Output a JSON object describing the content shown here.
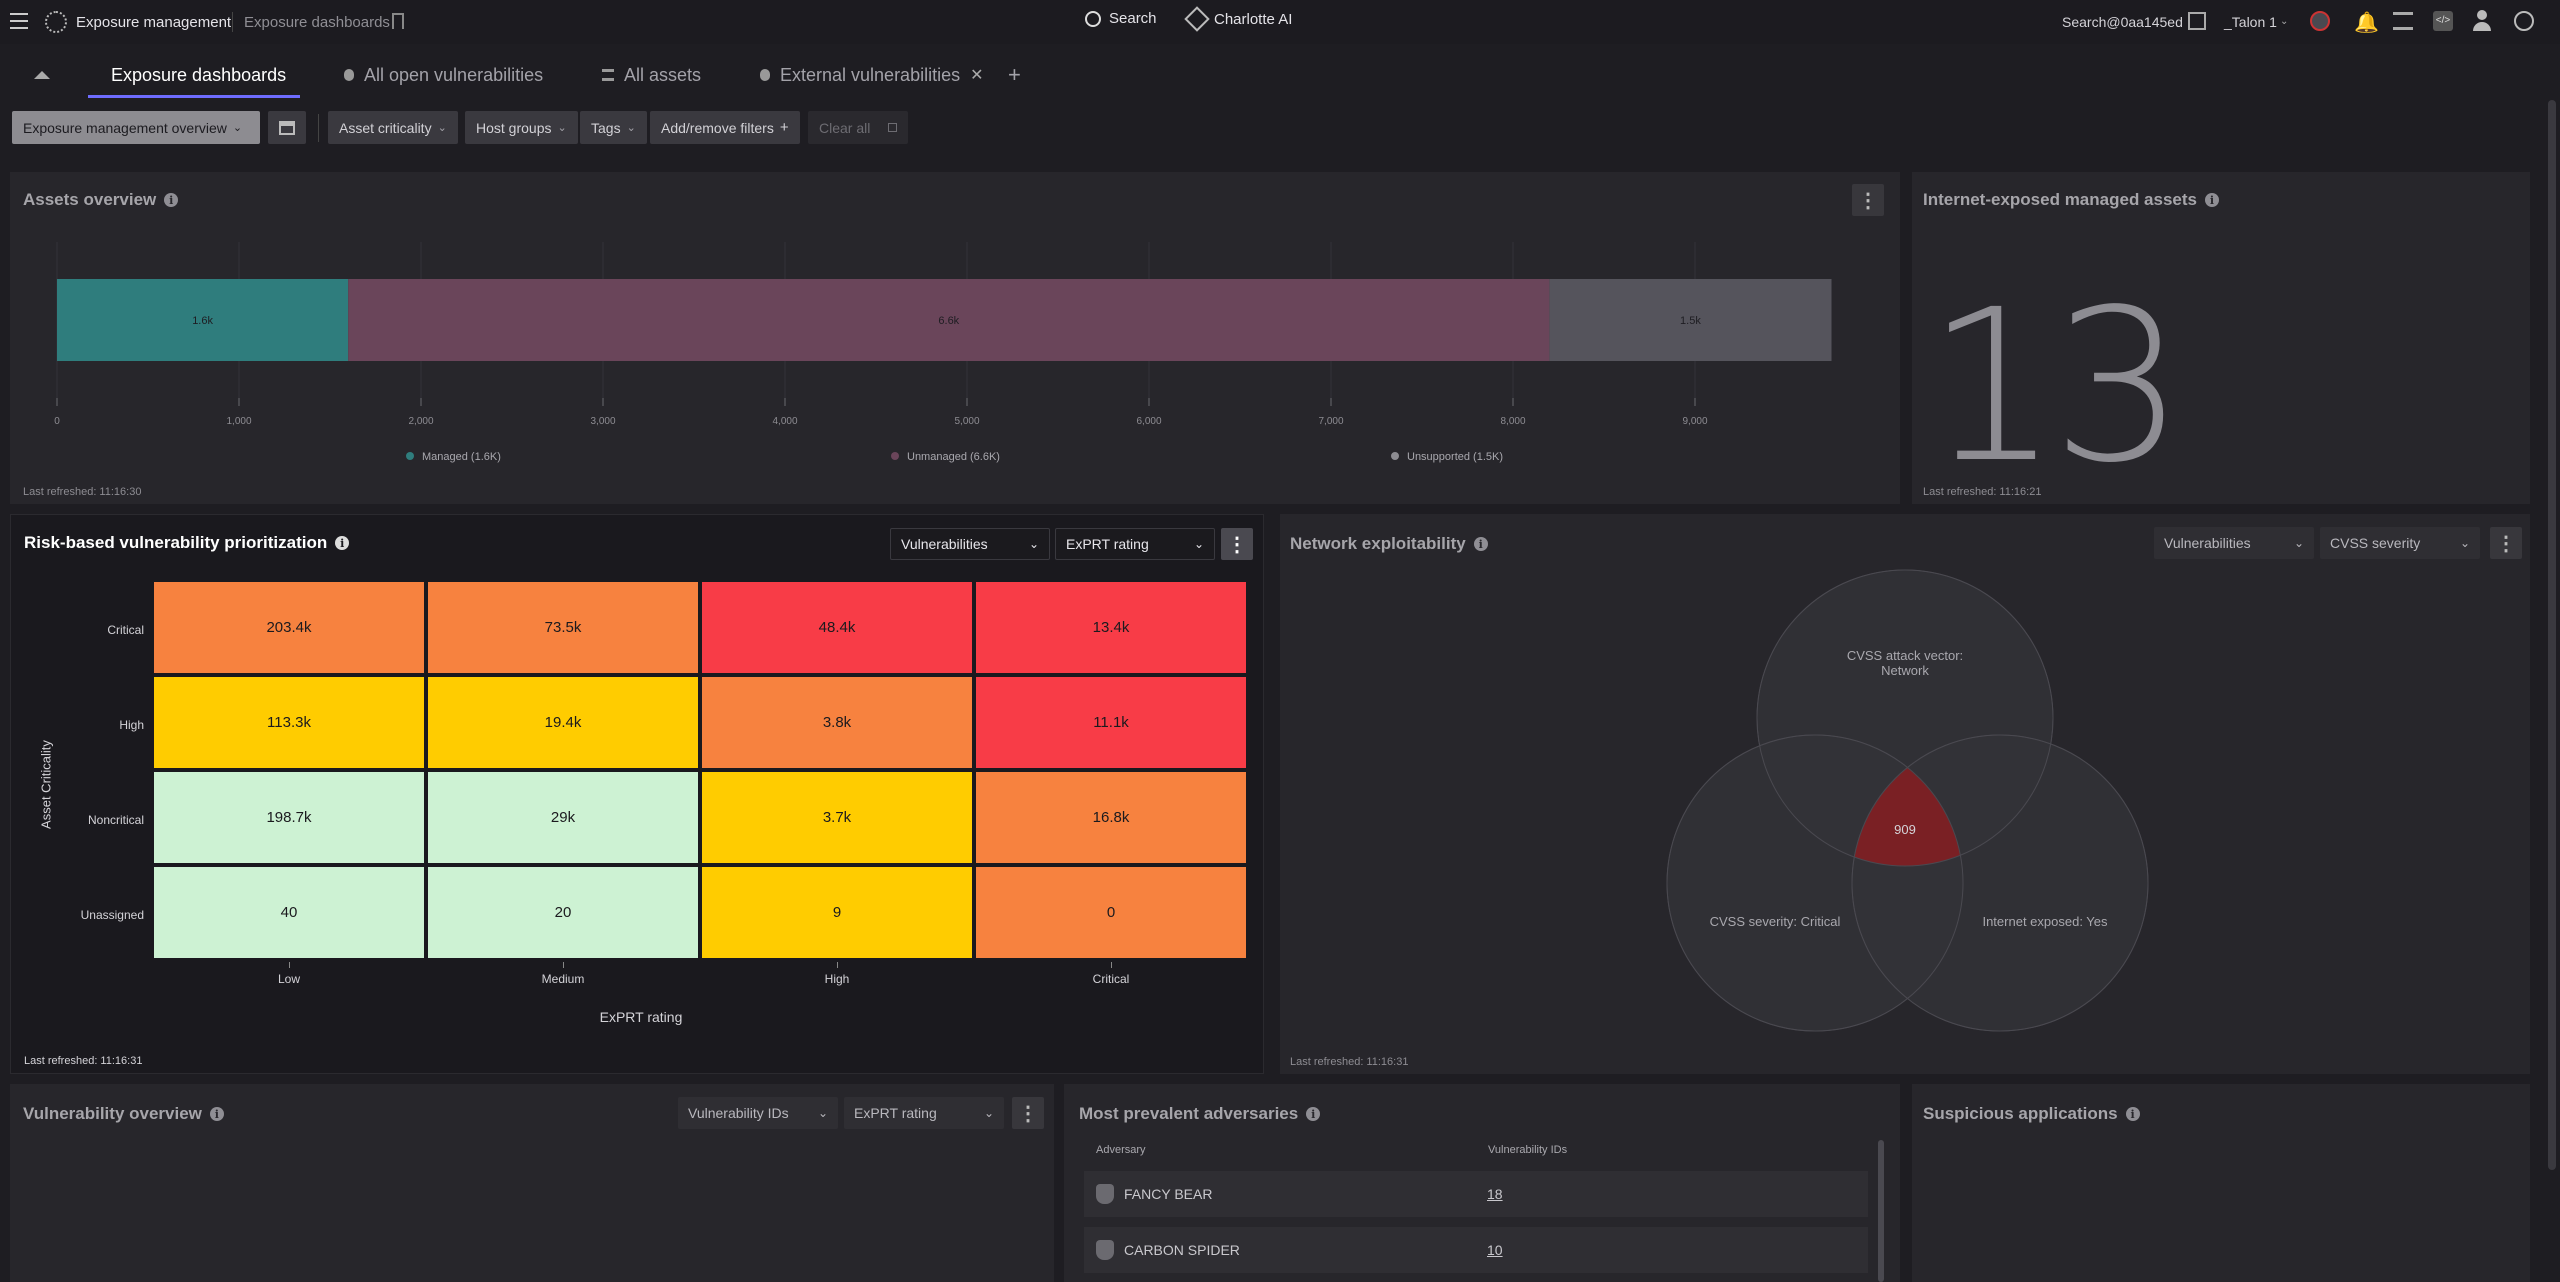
{
  "topbar": {
    "app_title": "Exposure management",
    "breadcrumb": "Exposure dashboards",
    "search_label": "Search",
    "ai_label": "Charlotte AI",
    "user_email": "Search@0aa145ed",
    "tenant": "_Talon 1"
  },
  "tabs": [
    {
      "label": "Exposure dashboards"
    },
    {
      "label": "All open vulnerabilities"
    },
    {
      "label": "All assets"
    },
    {
      "label": "External vulnerabilities"
    }
  ],
  "filters": {
    "dashboard_select": "Exposure management overview",
    "asset_criticality": "Asset criticality",
    "host_groups": "Host groups",
    "tags": "Tags",
    "add_remove": "Add/remove filters",
    "clear_all": "Clear all"
  },
  "assets_overview": {
    "title": "Assets overview",
    "refreshed": "Last refreshed: 11:16:30",
    "chart_data": {
      "type": "bar",
      "orientation": "horizontal-stacked",
      "series": [
        {
          "name": "Managed (1.6K)",
          "value": 1600,
          "label": "1.6k",
          "color": "#2f7d7d"
        },
        {
          "name": "Unmanaged (6.6K)",
          "value": 6600,
          "label": "6.6k",
          "color": "#6a455a"
        },
        {
          "name": "Unsupported (1.5K)",
          "value": 1550,
          "label": "1.5k",
          "color": "#55545c"
        }
      ],
      "xticks": [
        "0",
        "1,000",
        "2,000",
        "3,000",
        "4,000",
        "5,000",
        "6,000",
        "7,000",
        "8,000",
        "9,000"
      ],
      "xlim": [
        0,
        10000
      ]
    }
  },
  "internet_exposed": {
    "title": "Internet-exposed managed assets",
    "value": "13",
    "refreshed": "Last refreshed: 11:16:21"
  },
  "risk_matrix": {
    "title": "Risk-based vulnerability prioritization",
    "dd1": "Vulnerabilities",
    "dd2": "ExPRT rating",
    "refreshed": "Last refreshed: 11:16:31",
    "chart_data": {
      "type": "heatmap",
      "xlabel": "ExPRT rating",
      "ylabel": "Asset Criticality",
      "x": [
        "Low",
        "Medium",
        "High",
        "Critical"
      ],
      "y": [
        "Critical",
        "High",
        "Noncritical",
        "Unassigned"
      ],
      "labels": [
        [
          "203.4k",
          "73.5k",
          "48.4k",
          "13.4k"
        ],
        [
          "113.3k",
          "19.4k",
          "3.8k",
          "11.1k"
        ],
        [
          "198.7k",
          "29k",
          "3.7k",
          "16.8k"
        ],
        [
          "40",
          "20",
          "9",
          "0"
        ]
      ],
      "colors": [
        [
          "#f7823f",
          "#f7823f",
          "#f83c47",
          "#f83c47"
        ],
        [
          "#ffcc00",
          "#ffcc00",
          "#f7823f",
          "#f83c47"
        ],
        [
          "#cdf2d3",
          "#cdf2d3",
          "#ffcc00",
          "#f7823f"
        ],
        [
          "#cdf2d3",
          "#cdf2d3",
          "#ffcc00",
          "#f7823f"
        ]
      ]
    }
  },
  "network_exploitability": {
    "title": "Network exploitability",
    "dd1": "Vulnerabilities",
    "dd2": "CVSS severity",
    "refreshed": "Last refreshed: 11:16:31",
    "venn": {
      "top": "CVSS attack vector:",
      "top2": "Network",
      "left": "CVSS severity: Critical",
      "right": "Internet exposed: Yes",
      "center": "909"
    }
  },
  "vuln_overview": {
    "title": "Vulnerability overview",
    "dd1": "Vulnerability IDs",
    "dd2": "ExPRT rating"
  },
  "adversaries": {
    "title": "Most prevalent adversaries",
    "col1": "Adversary",
    "col2": "Vulnerability IDs",
    "rows": [
      {
        "name": "FANCY BEAR",
        "value": "18"
      },
      {
        "name": "CARBON SPIDER",
        "value": "10"
      }
    ]
  },
  "suspicious_apps": {
    "title": "Suspicious applications"
  }
}
